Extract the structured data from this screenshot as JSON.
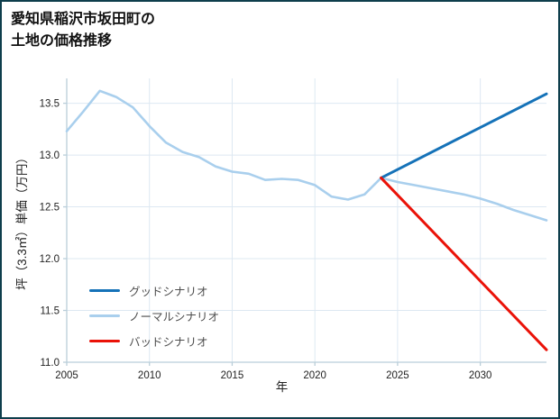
{
  "page": {
    "title_lines": [
      "愛知県稲沢市坂田町の",
      "土地の価格推移"
    ]
  },
  "chart_data": {
    "type": "line",
    "title": "愛知県稲沢市坂田町の土地の価格推移",
    "xlabel": "年",
    "ylabel": "坪（3.3㎡）単価（万円）",
    "xlim": [
      2005,
      2034
    ],
    "ylim": [
      11.0,
      13.74
    ],
    "grid": true,
    "legend_position": "lower-left",
    "grid_color": "#dde8f2",
    "spine_color": "#b9ced9",
    "xticks": [
      2005,
      2010,
      2015,
      2020,
      2025,
      2030
    ],
    "xtick_labels": [
      "2005",
      "2010",
      "2015",
      "2020",
      "2025",
      "2030"
    ],
    "yticks": [
      11.0,
      11.5,
      12.0,
      12.5,
      13.0,
      13.5
    ],
    "ytick_labels": [
      "11.0",
      "11.5",
      "12.0",
      "12.5",
      "13.0",
      "13.5"
    ],
    "series": [
      {
        "name": "グッドシナリオ",
        "color": "#1572b8",
        "width": 3,
        "x": [
          2024,
          2034
        ],
        "y": [
          12.78,
          13.59
        ]
      },
      {
        "name": "ノーマルシナリオ",
        "color": "#a9cfed",
        "width": 2.6,
        "x": [
          2005,
          2006,
          2007,
          2008,
          2009,
          2010,
          2011,
          2012,
          2013,
          2014,
          2015,
          2016,
          2017,
          2018,
          2019,
          2020,
          2021,
          2022,
          2023,
          2024,
          2025,
          2026,
          2027,
          2028,
          2029,
          2030,
          2031,
          2032,
          2033,
          2034
        ],
        "y": [
          13.23,
          13.42,
          13.62,
          13.56,
          13.46,
          13.28,
          13.12,
          13.03,
          12.98,
          12.89,
          12.84,
          12.82,
          12.76,
          12.77,
          12.76,
          12.71,
          12.6,
          12.57,
          12.62,
          12.78,
          12.74,
          12.71,
          12.68,
          12.65,
          12.62,
          12.58,
          12.53,
          12.47,
          12.42,
          12.37
        ]
      },
      {
        "name": "バッドシナリオ",
        "color": "#ea1208",
        "width": 3,
        "x": [
          2024,
          2034
        ],
        "y": [
          12.78,
          11.12
        ]
      }
    ]
  }
}
